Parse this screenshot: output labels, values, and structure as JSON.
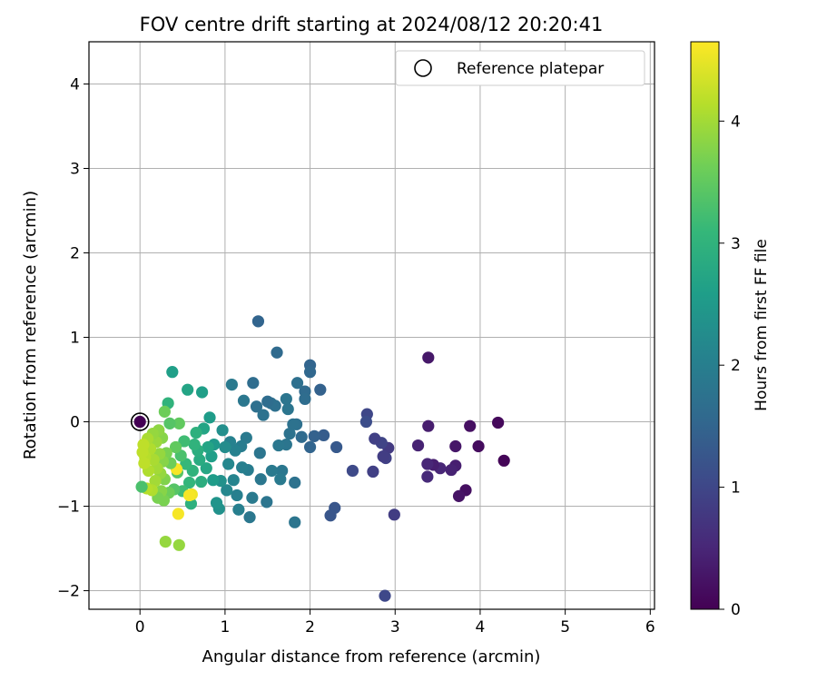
{
  "chart_data": {
    "type": "scatter",
    "title": "FOV centre drift starting at 2024/08/12 20:20:41",
    "xlabel": "Angular distance from reference (arcmin)",
    "ylabel": "Rotation from reference (arcmin)",
    "xlim": [
      -0.6,
      6.05
    ],
    "ylim": [
      -2.22,
      4.5
    ],
    "xticks": [
      0,
      1,
      2,
      3,
      4,
      5,
      6
    ],
    "yticks": [
      -2,
      -1,
      0,
      1,
      2,
      3,
      4
    ],
    "grid": true,
    "legend": {
      "position": "top-right",
      "entries": [
        "Reference platepar"
      ]
    },
    "reference_point": {
      "x": 0,
      "y": 0
    },
    "colorbar": {
      "label": "Hours from first FF file",
      "min": 0,
      "max": 4.65,
      "ticks": [
        0,
        1,
        2,
        3,
        4
      ],
      "colormap": "viridis",
      "stops": [
        "#440154",
        "#482878",
        "#3e4989",
        "#31688e",
        "#26828e",
        "#1f9e89",
        "#35b779",
        "#6ece58",
        "#b5de2b",
        "#fde725"
      ]
    },
    "series": [
      {
        "points": [
          {
            "x": 2.88,
            "y": -2.06,
            "c": 1.02
          },
          {
            "x": 4.28,
            "y": -0.46,
            "c": 0.05
          },
          {
            "x": 4.21,
            "y": -0.01,
            "c": 0.1
          },
          {
            "x": 3.98,
            "y": -0.29,
            "c": 0.14
          },
          {
            "x": 3.88,
            "y": -0.05,
            "c": 0.2
          },
          {
            "x": 3.83,
            "y": -0.81,
            "c": 0.18
          },
          {
            "x": 3.75,
            "y": -0.88,
            "c": 0.25
          },
          {
            "x": 3.71,
            "y": -0.29,
            "c": 0.28
          },
          {
            "x": 3.71,
            "y": -0.52,
            "c": 0.4
          },
          {
            "x": 3.66,
            "y": -0.57,
            "c": 0.45
          },
          {
            "x": 3.53,
            "y": -0.55,
            "c": 0.5
          },
          {
            "x": 3.45,
            "y": -0.51,
            "c": 0.4
          },
          {
            "x": 3.39,
            "y": 0.76,
            "c": 0.3
          },
          {
            "x": 3.39,
            "y": -0.05,
            "c": 0.38
          },
          {
            "x": 3.38,
            "y": -0.5,
            "c": 0.5
          },
          {
            "x": 3.38,
            "y": -0.65,
            "c": 0.55
          },
          {
            "x": 3.27,
            "y": -0.28,
            "c": 0.45
          },
          {
            "x": 2.99,
            "y": -1.1,
            "c": 0.85
          },
          {
            "x": 2.92,
            "y": -0.31,
            "c": 0.8
          },
          {
            "x": 2.89,
            "y": -0.43,
            "c": 0.9
          },
          {
            "x": 2.86,
            "y": -0.41,
            "c": 0.85
          },
          {
            "x": 2.84,
            "y": -0.25,
            "c": 0.95
          },
          {
            "x": 2.76,
            "y": -0.2,
            "c": 0.9
          },
          {
            "x": 2.74,
            "y": -0.59,
            "c": 0.9
          },
          {
            "x": 2.67,
            "y": 0.09,
            "c": 1.0
          },
          {
            "x": 2.66,
            "y": 0.0,
            "c": 1.1
          },
          {
            "x": 2.5,
            "y": -0.58,
            "c": 1.05
          },
          {
            "x": 2.31,
            "y": -0.3,
            "c": 1.3
          },
          {
            "x": 2.29,
            "y": -1.02,
            "c": 1.25
          },
          {
            "x": 2.24,
            "y": -1.11,
            "c": 1.25
          },
          {
            "x": 2.16,
            "y": -0.16,
            "c": 1.35
          },
          {
            "x": 2.12,
            "y": 0.38,
            "c": 1.45
          },
          {
            "x": 2.05,
            "y": -0.17,
            "c": 1.45
          },
          {
            "x": 2.0,
            "y": 0.67,
            "c": 1.5
          },
          {
            "x": 2.0,
            "y": 0.59,
            "c": 1.55
          },
          {
            "x": 2.0,
            "y": -0.3,
            "c": 1.5
          },
          {
            "x": 1.94,
            "y": 0.36,
            "c": 1.6
          },
          {
            "x": 1.94,
            "y": 0.27,
            "c": 1.65
          },
          {
            "x": 1.9,
            "y": -0.18,
            "c": 1.6
          },
          {
            "x": 1.85,
            "y": 0.46,
            "c": 1.7
          },
          {
            "x": 1.84,
            "y": -0.03,
            "c": 1.7
          },
          {
            "x": 1.82,
            "y": -1.19,
            "c": 1.8
          },
          {
            "x": 1.82,
            "y": -0.72,
            "c": 1.75
          },
          {
            "x": 1.8,
            "y": -0.03,
            "c": 1.75
          },
          {
            "x": 1.76,
            "y": -0.14,
            "c": 1.75
          },
          {
            "x": 1.74,
            "y": 0.15,
            "c": 1.8
          },
          {
            "x": 1.72,
            "y": 0.27,
            "c": 1.8
          },
          {
            "x": 1.72,
            "y": -0.27,
            "c": 1.8
          },
          {
            "x": 1.67,
            "y": -0.58,
            "c": 1.85
          },
          {
            "x": 1.65,
            "y": -0.68,
            "c": 1.9
          },
          {
            "x": 1.63,
            "y": -0.28,
            "c": 1.85
          },
          {
            "x": 1.61,
            "y": 0.82,
            "c": 1.6
          },
          {
            "x": 1.59,
            "y": 0.19,
            "c": 1.7
          },
          {
            "x": 1.55,
            "y": -0.58,
            "c": 1.9
          },
          {
            "x": 1.54,
            "y": 0.22,
            "c": 1.7
          },
          {
            "x": 1.5,
            "y": 0.24,
            "c": 1.65
          },
          {
            "x": 1.49,
            "y": -0.95,
            "c": 1.8
          },
          {
            "x": 1.45,
            "y": 0.08,
            "c": 1.75
          },
          {
            "x": 1.42,
            "y": -0.68,
            "c": 1.85
          },
          {
            "x": 1.41,
            "y": -0.37,
            "c": 1.8
          },
          {
            "x": 1.39,
            "y": 1.19,
            "c": 1.5
          },
          {
            "x": 1.37,
            "y": 0.18,
            "c": 1.7
          },
          {
            "x": 1.33,
            "y": 0.46,
            "c": 1.65
          },
          {
            "x": 1.32,
            "y": -0.9,
            "c": 1.9
          },
          {
            "x": 1.29,
            "y": -1.13,
            "c": 1.85
          },
          {
            "x": 1.27,
            "y": -0.57,
            "c": 1.95
          },
          {
            "x": 1.25,
            "y": -0.19,
            "c": 1.9
          },
          {
            "x": 1.22,
            "y": 0.25,
            "c": 1.85
          },
          {
            "x": 1.2,
            "y": -0.54,
            "c": 2.0
          },
          {
            "x": 1.19,
            "y": -0.29,
            "c": 1.95
          },
          {
            "x": 1.16,
            "y": -1.04,
            "c": 2.0
          },
          {
            "x": 1.14,
            "y": -0.87,
            "c": 2.0
          },
          {
            "x": 1.12,
            "y": -0.34,
            "c": 2.05
          },
          {
            "x": 1.1,
            "y": -0.69,
            "c": 2.1
          },
          {
            "x": 1.08,
            "y": 0.44,
            "c": 1.9
          },
          {
            "x": 1.06,
            "y": -0.24,
            "c": 2.05
          },
          {
            "x": 1.04,
            "y": -0.5,
            "c": 2.15
          },
          {
            "x": 1.02,
            "y": -0.81,
            "c": 2.15
          },
          {
            "x": 1.0,
            "y": -0.3,
            "c": 2.25
          },
          {
            "x": 0.97,
            "y": -0.1,
            "c": 2.3
          },
          {
            "x": 0.95,
            "y": -0.7,
            "c": 2.35
          },
          {
            "x": 0.93,
            "y": -1.03,
            "c": 2.35
          },
          {
            "x": 0.9,
            "y": -0.96,
            "c": 2.4
          },
          {
            "x": 0.87,
            "y": -0.27,
            "c": 2.5
          },
          {
            "x": 0.86,
            "y": -0.69,
            "c": 2.55
          },
          {
            "x": 0.84,
            "y": -0.41,
            "c": 2.6
          },
          {
            "x": 0.82,
            "y": 0.05,
            "c": 2.55
          },
          {
            "x": 0.8,
            "y": -0.3,
            "c": 2.7
          },
          {
            "x": 0.78,
            "y": -0.55,
            "c": 2.75
          },
          {
            "x": 0.75,
            "y": -0.08,
            "c": 2.7
          },
          {
            "x": 0.73,
            "y": 0.35,
            "c": 2.6
          },
          {
            "x": 0.72,
            "y": -0.71,
            "c": 2.9
          },
          {
            "x": 0.7,
            "y": -0.45,
            "c": 2.85
          },
          {
            "x": 0.68,
            "y": -0.34,
            "c": 2.9
          },
          {
            "x": 0.66,
            "y": -0.13,
            "c": 2.95
          },
          {
            "x": 0.64,
            "y": -0.27,
            "c": 3.0
          },
          {
            "x": 0.62,
            "y": -0.58,
            "c": 3.0
          },
          {
            "x": 0.6,
            "y": -0.97,
            "c": 2.95
          },
          {
            "x": 0.58,
            "y": -0.72,
            "c": 3.05
          },
          {
            "x": 0.56,
            "y": 0.38,
            "c": 2.7
          },
          {
            "x": 0.54,
            "y": -0.5,
            "c": 3.1
          },
          {
            "x": 0.52,
            "y": -0.23,
            "c": 3.2
          },
          {
            "x": 0.5,
            "y": -0.82,
            "c": 3.2
          },
          {
            "x": 0.48,
            "y": -0.4,
            "c": 3.3
          },
          {
            "x": 0.46,
            "y": -1.46,
            "c": 3.9
          },
          {
            "x": 0.46,
            "y": -0.02,
            "c": 3.5
          },
          {
            "x": 0.45,
            "y": -1.09,
            "c": 4.6
          },
          {
            "x": 0.44,
            "y": -0.6,
            "c": 3.4
          },
          {
            "x": 0.43,
            "y": -0.56,
            "c": 4.6
          },
          {
            "x": 0.42,
            "y": -0.3,
            "c": 3.5
          },
          {
            "x": 0.4,
            "y": -0.8,
            "c": 3.4
          },
          {
            "x": 0.38,
            "y": 0.59,
            "c": 2.6
          },
          {
            "x": 0.36,
            "y": -0.49,
            "c": 3.6
          },
          {
            "x": 0.35,
            "y": -0.02,
            "c": 3.4
          },
          {
            "x": 0.34,
            "y": -0.84,
            "c": 3.6
          },
          {
            "x": 0.33,
            "y": 0.22,
            "c": 3.0
          },
          {
            "x": 0.31,
            "y": -0.37,
            "c": 3.7
          },
          {
            "x": 0.3,
            "y": -1.42,
            "c": 3.9
          },
          {
            "x": 0.29,
            "y": -0.68,
            "c": 3.75
          },
          {
            "x": 0.29,
            "y": 0.12,
            "c": 3.6
          },
          {
            "x": 0.28,
            "y": -0.93,
            "c": 3.7
          },
          {
            "x": 0.27,
            "y": -0.47,
            "c": 3.8
          },
          {
            "x": 0.26,
            "y": -0.19,
            "c": 3.8
          },
          {
            "x": 0.25,
            "y": -0.82,
            "c": 3.8
          },
          {
            "x": 0.24,
            "y": -0.61,
            "c": 3.9
          },
          {
            "x": 0.23,
            "y": -0.38,
            "c": 3.9
          },
          {
            "x": 0.22,
            "y": -0.1,
            "c": 3.85
          },
          {
            "x": 0.21,
            "y": -0.9,
            "c": 3.7
          },
          {
            "x": 0.2,
            "y": -0.55,
            "c": 4.0
          },
          {
            "x": 0.19,
            "y": -0.24,
            "c": 3.95
          },
          {
            "x": 0.18,
            "y": -0.7,
            "c": 4.0
          },
          {
            "x": 0.16,
            "y": -0.45,
            "c": 4.05
          },
          {
            "x": 0.15,
            "y": -0.14,
            "c": 3.9
          },
          {
            "x": 0.14,
            "y": -0.81,
            "c": 4.1
          },
          {
            "x": 0.12,
            "y": -0.32,
            "c": 4.1
          },
          {
            "x": 0.1,
            "y": -0.58,
            "c": 4.1
          },
          {
            "x": 0.09,
            "y": -0.2,
            "c": 4.05
          },
          {
            "x": 0.08,
            "y": -0.79,
            "c": 4.15
          },
          {
            "x": 0.06,
            "y": -0.42,
            "c": 4.15
          },
          {
            "x": 0.05,
            "y": -0.49,
            "c": 4.2
          },
          {
            "x": 0.04,
            "y": -0.27,
            "c": 4.2
          },
          {
            "x": 0.03,
            "y": -0.36,
            "c": 4.2
          },
          {
            "x": 0.02,
            "y": -0.77,
            "c": 3.3
          },
          {
            "x": 0.0,
            "y": 0.0,
            "c": 0.0
          },
          {
            "x": 0.61,
            "y": -0.86,
            "c": 4.55
          },
          {
            "x": 0.58,
            "y": -0.87,
            "c": 4.6
          }
        ]
      }
    ]
  }
}
